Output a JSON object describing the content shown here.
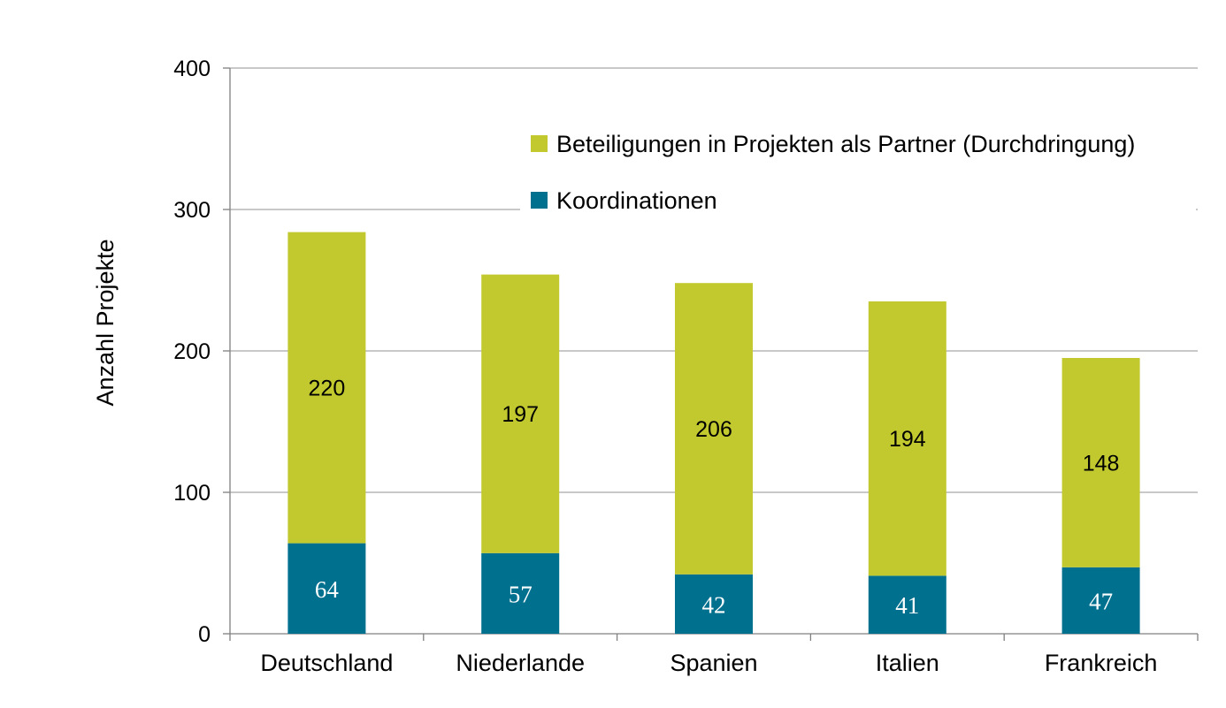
{
  "colors": {
    "partner": "#c2c92f",
    "koordination": "#00708f",
    "grid": "#a6a6a6",
    "axis": "#808080"
  },
  "chart_data": {
    "type": "bar",
    "stacked": true,
    "title": "",
    "xlabel": "",
    "ylabel": "Anzahl Projekte",
    "ylim": [
      0,
      400
    ],
    "yticks": [
      0,
      100,
      200,
      300,
      400
    ],
    "grid": true,
    "legend_position": "top-right",
    "categories": [
      "Deutschland",
      "Niederlande",
      "Spanien",
      "Italien",
      "Frankreich"
    ],
    "series": [
      {
        "name": "Koordinationen",
        "values": [
          64,
          57,
          42,
          41,
          47
        ]
      },
      {
        "name": "Beteiligungen in Projekten als Partner (Durchdringung)",
        "values": [
          220,
          197,
          206,
          194,
          148
        ]
      }
    ]
  }
}
